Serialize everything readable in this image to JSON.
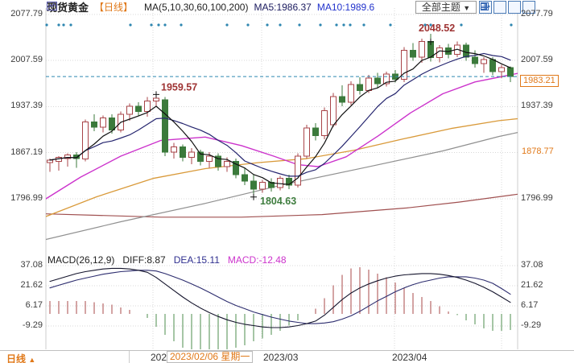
{
  "header": {
    "symbol": "现货黄金",
    "period": "【日线】",
    "ma_settings": "MA(5,10,30,60,100,200)",
    "ma5": "MA5:1986.37",
    "ma10": "MA10:1989.6",
    "theme_button": "全部主题",
    "theme_arrow": "▼",
    "tool_icons": [
      "crosshair",
      "panel-bottom",
      "panel-right",
      "panel-expand"
    ]
  },
  "price_labels": {
    "current": "1983.21",
    "secondary": "1878.77"
  },
  "macd_header": {
    "name": "MACD(26,12,9)",
    "diff": "DIFF:8.87",
    "dea": "DEA:15.11",
    "macd": "MACD:-12.48"
  },
  "bottom_bar": {
    "period_tab": "日线",
    "tab_arrow": "▲",
    "dates": [
      {
        "text": "2023/02",
        "x": 187
      },
      {
        "text": "2023/03",
        "x": 327
      },
      {
        "text": "2023/04",
        "x": 487
      }
    ],
    "highlight_date": "2023/02/06 星期一"
  },
  "colors": {
    "accent_orange": "#e07818",
    "up_candle": "#a84448",
    "down_candle": "#3b7a3b",
    "ma5": "#111111",
    "ma10": "#24246e",
    "ma30": "#cc33cc",
    "ma60": "#d99a3a",
    "ma100": "#909090",
    "ma200": "#a05050",
    "price_line": "#2e86b0",
    "event_dot": "#2e86b0",
    "hist_pos": "#aa4a4a",
    "hist_neg": "#4e8c4e",
    "diff_line": "#14142c",
    "dea_line": "#2c2c6e",
    "annotation_high": "#9e3333",
    "annotation_low": "#3f7d3f",
    "grid": "#d8d8d8"
  },
  "chart_data": {
    "type": "candlestick+macd",
    "title": "现货黄金 日线",
    "main_panel": {
      "y_ticks_left": [
        2077.79,
        2007.59,
        1937.39,
        1867.19,
        1796.99
      ],
      "y_ticks_right": [
        2077.79,
        2007.59,
        1937.39,
        1796.99
      ],
      "current_price": 1983.21,
      "secondary_price": 1878.77,
      "candles_ohlc": [
        [
          1852,
          1858,
          1838,
          1856
        ],
        [
          1854,
          1862,
          1840,
          1860
        ],
        [
          1858,
          1866,
          1846,
          1864
        ],
        [
          1864,
          1868,
          1844,
          1858
        ],
        [
          1858,
          1918,
          1854,
          1914
        ],
        [
          1914,
          1926,
          1900,
          1906
        ],
        [
          1906,
          1924,
          1898,
          1920
        ],
        [
          1920,
          1926,
          1896,
          1902
        ],
        [
          1902,
          1930,
          1898,
          1926
        ],
        [
          1926,
          1942,
          1916,
          1938
        ],
        [
          1938,
          1944,
          1924,
          1930
        ],
        [
          1930,
          1952,
          1922,
          1946
        ],
        [
          1946,
          1959.57,
          1938,
          1950
        ],
        [
          1948,
          1952,
          1862,
          1868
        ],
        [
          1868,
          1882,
          1858,
          1876
        ],
        [
          1876,
          1880,
          1854,
          1860
        ],
        [
          1860,
          1874,
          1850,
          1868
        ],
        [
          1868,
          1872,
          1848,
          1854
        ],
        [
          1854,
          1868,
          1844,
          1862
        ],
        [
          1862,
          1866,
          1840,
          1846
        ],
        [
          1846,
          1860,
          1838,
          1854
        ],
        [
          1854,
          1858,
          1828,
          1834
        ],
        [
          1834,
          1844,
          1818,
          1824
        ],
        [
          1824,
          1834,
          1804.63,
          1812
        ],
        [
          1812,
          1826,
          1806,
          1822
        ],
        [
          1822,
          1828,
          1808,
          1814
        ],
        [
          1814,
          1832,
          1810,
          1828
        ],
        [
          1828,
          1834,
          1812,
          1818
        ],
        [
          1818,
          1866,
          1814,
          1862
        ],
        [
          1862,
          1910,
          1858,
          1905
        ],
        [
          1905,
          1912,
          1886,
          1893
        ],
        [
          1893,
          1936,
          1888,
          1931
        ],
        [
          1910,
          1958,
          1906,
          1953
        ],
        [
          1953,
          1970,
          1938,
          1944
        ],
        [
          1944,
          1976,
          1940,
          1971
        ],
        [
          1971,
          1982,
          1956,
          1962
        ],
        [
          1962,
          1986,
          1958,
          1981
        ],
        [
          1981,
          1989,
          1966,
          1972
        ],
        [
          1972,
          1991,
          1968,
          1987
        ],
        [
          1987,
          1993,
          1974,
          1979
        ],
        [
          1979,
          2028,
          1975,
          2023
        ],
        [
          2023,
          2034,
          2007,
          2013
        ],
        [
          2013,
          2041,
          2004,
          2037
        ],
        [
          2037,
          2048.52,
          2006,
          2012
        ],
        [
          2012,
          2031,
          2005,
          2027
        ],
        [
          2027,
          2033,
          2011,
          2017
        ],
        [
          2017,
          2037,
          2013,
          2031
        ],
        [
          2031,
          2035,
          2007,
          2013
        ],
        [
          2013,
          2023,
          1997,
          2003
        ],
        [
          2003,
          2013,
          1989,
          2009
        ],
        [
          2009,
          2013,
          1985,
          1991
        ],
        [
          1991,
          2001,
          1981,
          1997
        ],
        [
          1997,
          1999,
          1975,
          1983.21
        ]
      ],
      "annotations": {
        "highs": [
          {
            "index": 12,
            "price": 1959.57
          },
          {
            "index": 43,
            "price": 2048.52
          }
        ],
        "low": {
          "index": 23,
          "price": 1804.63
        }
      },
      "ma30_points": [
        [
          57,
          1797
        ],
        [
          100,
          1830
        ],
        [
          150,
          1862
        ],
        [
          200,
          1886
        ],
        [
          255,
          1891
        ],
        [
          300,
          1878
        ],
        [
          340,
          1862
        ],
        [
          370,
          1849
        ],
        [
          395,
          1846
        ],
        [
          430,
          1861
        ],
        [
          470,
          1893
        ],
        [
          510,
          1928
        ],
        [
          550,
          1957
        ],
        [
          590,
          1975
        ],
        [
          643,
          1988
        ]
      ],
      "ma60_points": [
        [
          57,
          1770
        ],
        [
          120,
          1800
        ],
        [
          190,
          1828
        ],
        [
          255,
          1843
        ],
        [
          320,
          1852
        ],
        [
          380,
          1858
        ],
        [
          440,
          1871
        ],
        [
          500,
          1888
        ],
        [
          560,
          1904
        ],
        [
          620,
          1916
        ],
        [
          643,
          1919
        ]
      ],
      "ma100_points": [
        [
          57,
          1735
        ],
        [
          150,
          1762
        ],
        [
          255,
          1790
        ],
        [
          350,
          1818
        ],
        [
          455,
          1845
        ],
        [
          550,
          1870
        ],
        [
          620,
          1892
        ],
        [
          643,
          1898
        ]
      ],
      "ma200_points": [
        [
          57,
          1774
        ],
        [
          200,
          1769
        ],
        [
          300,
          1769
        ],
        [
          400,
          1773
        ],
        [
          505,
          1783
        ],
        [
          570,
          1792
        ],
        [
          643,
          1804
        ]
      ],
      "event_dots_x": [
        58,
        73,
        79,
        88,
        162,
        188,
        197,
        205,
        225,
        282,
        308,
        332,
        348,
        372,
        398,
        418,
        427,
        435,
        452,
        485,
        528,
        535,
        573,
        635
      ]
    },
    "macd_panel": {
      "y_ticks": [
        37.08,
        21.62,
        6.17,
        -9.29
      ],
      "diff": [
        25,
        27,
        29,
        31,
        32.5,
        33.5,
        34.5,
        35,
        35,
        34.5,
        33.5,
        32,
        28,
        23,
        18,
        13,
        8.5,
        4.5,
        1,
        -2,
        -4.5,
        -6.5,
        -8,
        -9,
        -10,
        -10.5,
        -10.5,
        -10,
        -9,
        -7.5,
        -5.5,
        -1,
        5,
        11,
        16,
        20,
        23,
        25.5,
        27.5,
        29,
        30,
        30.5,
        31,
        31,
        30.5,
        29.5,
        28,
        26,
        23.5,
        20.5,
        17,
        13,
        8.87
      ],
      "dea": [
        20,
        22,
        24,
        26,
        27.5,
        29,
        30.5,
        31.5,
        32.5,
        33,
        33.5,
        33.5,
        33,
        31,
        28.5,
        26,
        23,
        20,
        16.5,
        13,
        9.5,
        6.5,
        4,
        1.5,
        -0.5,
        -2.5,
        -4,
        -5.5,
        -6.5,
        -7.5,
        -7.5,
        -7,
        -6,
        -4,
        -1.5,
        2,
        6,
        10,
        13.5,
        17,
        20,
        22.5,
        24.5,
        26,
        27.5,
        28.5,
        28.5,
        28.5,
        27.5,
        26,
        23.5,
        19.5,
        15.11
      ]
    },
    "x_axis": {
      "gridlines_x": [
        190,
        325,
        490,
        623
      ],
      "labels": [
        "2023/02",
        "2023/03",
        "2023/04"
      ]
    },
    "layout": {
      "grid": "dotted",
      "legend_position": "top-left"
    }
  }
}
